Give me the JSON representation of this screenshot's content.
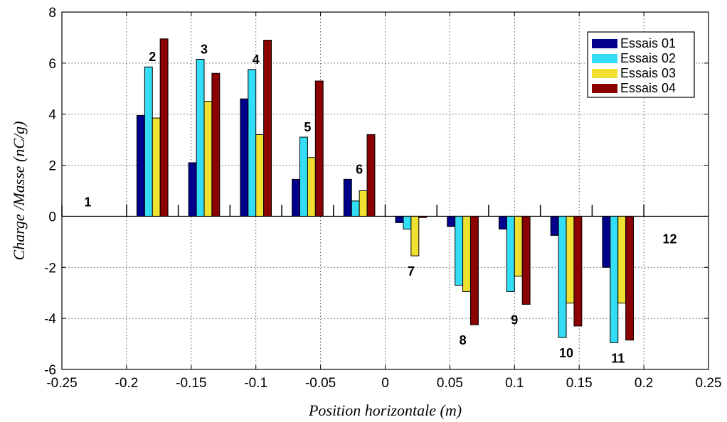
{
  "chart_data": {
    "type": "bar",
    "title": "",
    "xlabel": "Position horizontale (m)",
    "ylabel": "Charge /Masse (nC/g)",
    "xlim": [
      -0.25,
      0.25
    ],
    "ylim": [
      -6,
      8
    ],
    "xticks": [
      "-0.25",
      "-0.2",
      "-0.15",
      "-0.1",
      "-0.05",
      "0",
      "0.05",
      "0.1",
      "0.15",
      "0.2",
      "0.25"
    ],
    "yticks": [
      "8",
      "6",
      "4",
      "2",
      "0",
      "-2",
      "-4",
      "-6"
    ],
    "grid": true,
    "legend_position": "top-right",
    "groups": [
      {
        "label": "1",
        "x": -0.23
      },
      {
        "label": "2",
        "x": -0.18
      },
      {
        "label": "3",
        "x": -0.14
      },
      {
        "label": "4",
        "x": -0.1
      },
      {
        "label": "5",
        "x": -0.06
      },
      {
        "label": "6",
        "x": -0.02
      },
      {
        "label": "7",
        "x": 0.02
      },
      {
        "label": "8",
        "x": 0.06
      },
      {
        "label": "9",
        "x": 0.1
      },
      {
        "label": "10",
        "x": 0.14
      },
      {
        "label": "11",
        "x": 0.18
      },
      {
        "label": "12",
        "x": 0.22
      }
    ],
    "series": [
      {
        "name": "Essais 01",
        "color": "#00008B",
        "values": [
          0,
          3.95,
          2.1,
          4.6,
          1.45,
          1.45,
          -0.25,
          -0.4,
          -0.5,
          -0.75,
          -2.0,
          0
        ]
      },
      {
        "name": "Essais 02",
        "color": "#33DDF5",
        "values": [
          0,
          5.85,
          6.15,
          5.75,
          3.1,
          0.6,
          -0.5,
          -2.7,
          -2.95,
          -4.75,
          -4.95,
          0
        ]
      },
      {
        "name": "Essais 03",
        "color": "#F0E030",
        "values": [
          0,
          3.85,
          4.5,
          3.2,
          2.3,
          1.0,
          -1.55,
          -2.95,
          -2.35,
          -3.4,
          -3.4,
          0
        ]
      },
      {
        "name": "Essais 04",
        "color": "#8B0000",
        "values": [
          0,
          6.95,
          5.6,
          6.9,
          5.3,
          3.2,
          -0.05,
          -4.25,
          -3.45,
          -4.3,
          -4.85,
          0
        ]
      }
    ]
  }
}
